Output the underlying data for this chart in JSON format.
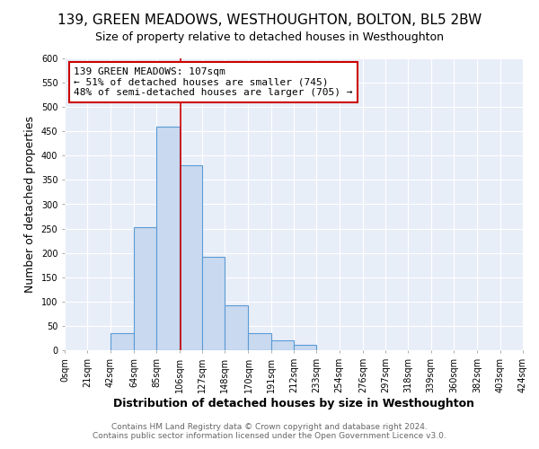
{
  "title": "139, GREEN MEADOWS, WESTHOUGHTON, BOLTON, BL5 2BW",
  "subtitle": "Size of property relative to detached houses in Westhoughton",
  "xlabel": "Distribution of detached houses by size in Westhoughton",
  "ylabel": "Number of detached properties",
  "bin_edges": [
    0,
    21,
    42,
    64,
    85,
    106,
    127,
    148,
    170,
    191,
    212,
    233,
    254,
    276,
    297,
    318,
    339,
    360,
    382,
    403,
    424
  ],
  "bin_heights": [
    0,
    0,
    35,
    252,
    460,
    380,
    192,
    93,
    35,
    20,
    12,
    0,
    0,
    0,
    0,
    0,
    0,
    0,
    0,
    0
  ],
  "bar_color": "#c8d9f0",
  "bar_edge_color": "#5b9bd5",
  "property_line_x": 107,
  "property_line_color": "#cc0000",
  "ylim": [
    0,
    600
  ],
  "yticks": [
    0,
    50,
    100,
    150,
    200,
    250,
    300,
    350,
    400,
    450,
    500,
    550,
    600
  ],
  "annotation_text": "139 GREEN MEADOWS: 107sqm\n← 51% of detached houses are smaller (745)\n48% of semi-detached houses are larger (705) →",
  "annotation_box_color": "white",
  "annotation_box_edge": "#cc0000",
  "footer_line1": "Contains HM Land Registry data © Crown copyright and database right 2024.",
  "footer_line2": "Contains public sector information licensed under the Open Government Licence v3.0.",
  "background_color": "#ffffff",
  "plot_bg_color": "#e8eef8",
  "grid_color": "#ffffff",
  "title_fontsize": 11,
  "subtitle_fontsize": 9,
  "tick_label_fontsize": 7,
  "axis_label_fontsize": 9,
  "footer_fontsize": 6.5
}
